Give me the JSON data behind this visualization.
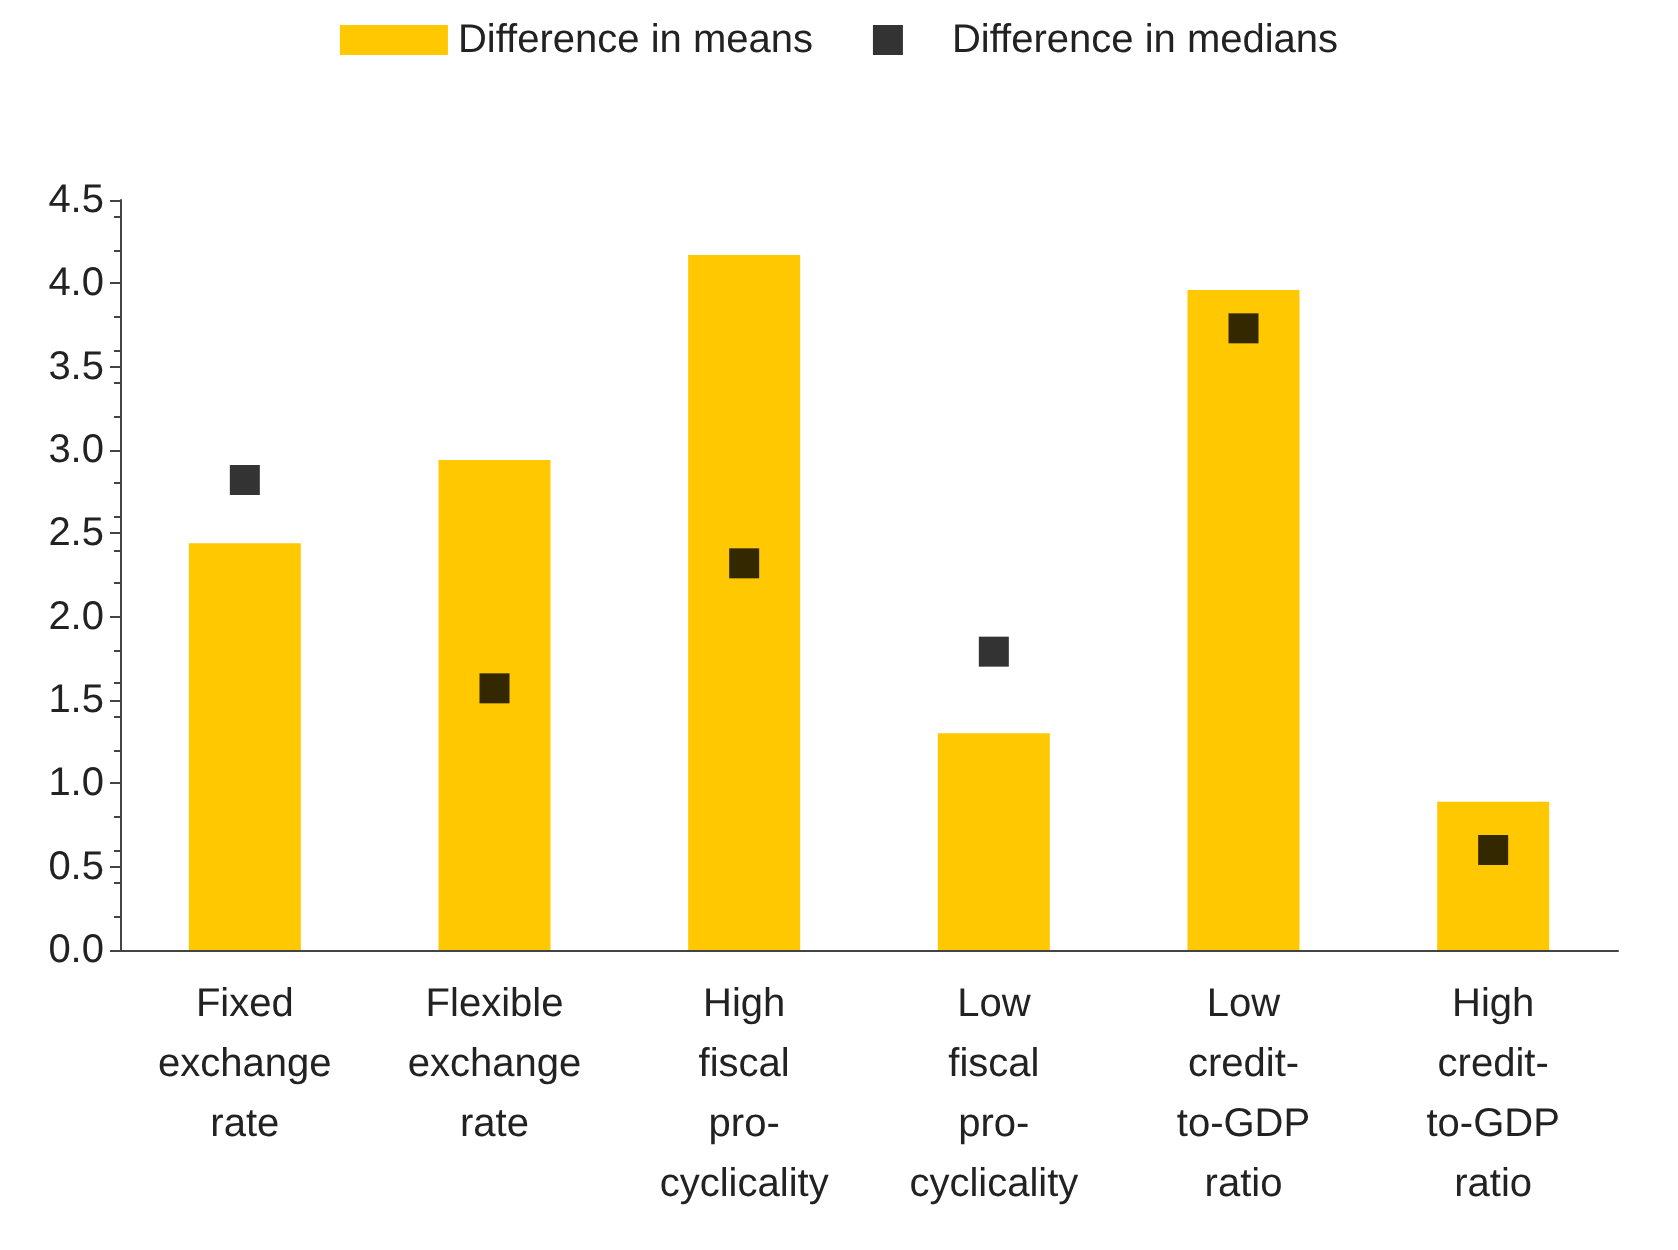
{
  "chart_data": {
    "type": "bar",
    "categories": [
      "Fixed exchange rate",
      "Flexible exchange rate",
      "High fiscal pro-cyclicality",
      "Low fiscal pro-cyclicality",
      "Low credit-to-GDP ratio",
      "High credit-to-GDP ratio"
    ],
    "series": [
      {
        "name": "Difference in means",
        "color": "#ffc800",
        "values": [
          2.44,
          2.94,
          4.17,
          1.3,
          3.96,
          0.89
        ]
      },
      {
        "name": "Difference in medians",
        "type": "scatter",
        "marker": "square",
        "color": "#000000",
        "x": [
          "Fixed exchange rate",
          "Flexible exchange rate",
          "High fiscal pro-cyclicality",
          "Low fiscal pro-cyclicality",
          "Low credit-to-GDP ratio",
          "High credit-to-GDP ratio"
        ],
        "values": [
          2.82,
          1.57,
          2.32,
          1.79,
          3.73,
          0.6
        ]
      }
    ],
    "ylim": [
      0,
      4.5
    ],
    "yticks": [
      {
        "value": 0,
        "label": "0.0"
      },
      0.5,
      {
        "value": 1,
        "label": "1.0"
      },
      1.5,
      {
        "value": 2,
        "label": "2.0"
      },
      2.5,
      {
        "value": 3,
        "label": "3.0"
      },
      3.5,
      {
        "value": 4,
        "label": "4.0"
      },
      4.5
    ],
    "grid": false,
    "legend": "top"
  }
}
